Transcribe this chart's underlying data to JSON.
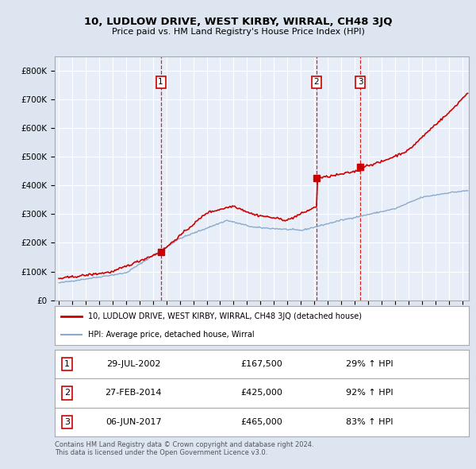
{
  "title": "10, LUDLOW DRIVE, WEST KIRBY, WIRRAL, CH48 3JQ",
  "subtitle": "Price paid vs. HM Land Registry's House Price Index (HPI)",
  "bg_color": "#dde5f0",
  "plot_bg_color": "#e8eef8",
  "grid_color": "#ffffff",
  "sale_prices": [
    167500,
    425000,
    465000
  ],
  "sale_labels": [
    "1",
    "2",
    "3"
  ],
  "sale_color": "#cc0000",
  "hpi_color": "#88aacc",
  "vline_color": "#cc0000",
  "legend_label_red": "10, LUDLOW DRIVE, WEST KIRBY, WIRRAL, CH48 3JQ (detached house)",
  "legend_label_blue": "HPI: Average price, detached house, Wirral",
  "table_rows": [
    [
      "1",
      "29-JUL-2002",
      "£167,500",
      "29% ↑ HPI"
    ],
    [
      "2",
      "27-FEB-2014",
      "£425,000",
      "92% ↑ HPI"
    ],
    [
      "3",
      "06-JUN-2017",
      "£465,000",
      "83% ↑ HPI"
    ]
  ],
  "footer": "Contains HM Land Registry data © Crown copyright and database right 2024.\nThis data is licensed under the Open Government Licence v3.0.",
  "ylim": [
    0,
    850000
  ],
  "yticks": [
    0,
    100000,
    200000,
    300000,
    400000,
    500000,
    600000,
    700000,
    800000
  ],
  "ytick_labels": [
    "£0",
    "£100K",
    "£200K",
    "£300K",
    "£400K",
    "£500K",
    "£600K",
    "£700K",
    "£800K"
  ]
}
